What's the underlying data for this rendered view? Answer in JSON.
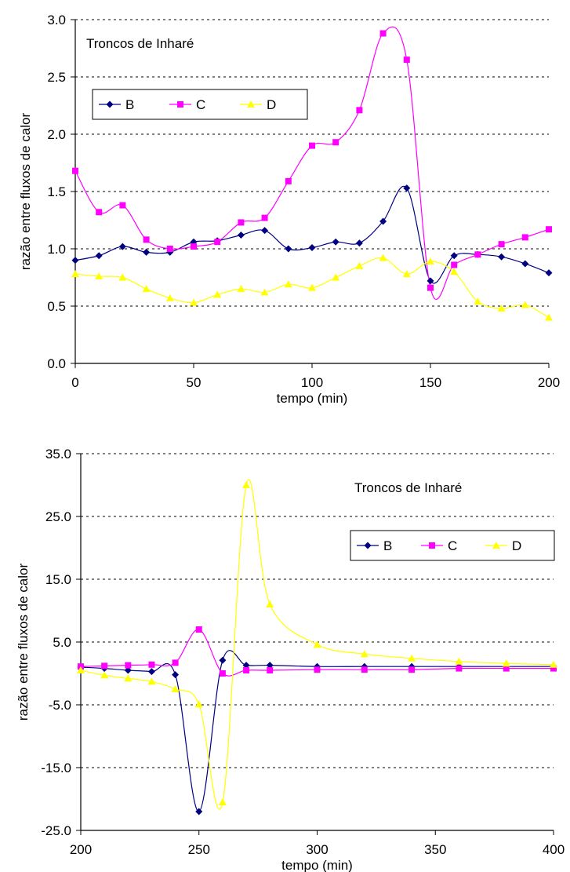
{
  "chart_data": [
    {
      "type": "line",
      "title": "",
      "annotation": "Troncos de Inharé",
      "xlabel": "tempo (min)",
      "ylabel": "razão entre fluxos de calor",
      "xlim": [
        0,
        200
      ],
      "ylim": [
        0,
        3
      ],
      "x_ticks": [
        "0",
        "50",
        "100",
        "150",
        "200"
      ],
      "y_ticks": [
        "0.0",
        "0.5",
        "1.0",
        "1.5",
        "2.0",
        "2.5",
        "3.0"
      ],
      "grid": "horizontal dashed",
      "legend_position": "top-left",
      "series": [
        {
          "name": "B",
          "color": "#000080",
          "marker": "diamond",
          "x": [
            0,
            10,
            20,
            30,
            40,
            50,
            60,
            70,
            80,
            90,
            100,
            110,
            120,
            130,
            140,
            150,
            160,
            170,
            180,
            190,
            200
          ],
          "y": [
            0.9,
            0.94,
            1.02,
            0.97,
            0.97,
            1.06,
            1.07,
            1.12,
            1.16,
            1.0,
            1.01,
            1.06,
            1.05,
            1.24,
            1.53,
            0.72,
            0.94,
            0.95,
            0.93,
            0.87,
            0.79
          ]
        },
        {
          "name": "C",
          "color": "#FF00FF",
          "marker": "square",
          "x": [
            0,
            10,
            20,
            30,
            40,
            50,
            60,
            70,
            80,
            90,
            100,
            110,
            120,
            130,
            140,
            150,
            160,
            170,
            180,
            190,
            200
          ],
          "y": [
            1.68,
            1.32,
            1.38,
            1.08,
            1.0,
            1.02,
            1.06,
            1.23,
            1.27,
            1.59,
            1.9,
            1.93,
            2.21,
            2.88,
            2.65,
            0.66,
            0.86,
            0.95,
            1.04,
            1.1,
            1.17
          ]
        },
        {
          "name": "D",
          "color": "#FFFF00",
          "marker": "triangle",
          "x": [
            0,
            10,
            20,
            30,
            40,
            50,
            60,
            70,
            80,
            90,
            100,
            110,
            120,
            130,
            140,
            150,
            160,
            170,
            180,
            190,
            200
          ],
          "y": [
            0.78,
            0.76,
            0.75,
            0.65,
            0.57,
            0.53,
            0.6,
            0.65,
            0.62,
            0.69,
            0.66,
            0.75,
            0.85,
            0.92,
            0.78,
            0.89,
            0.8,
            0.54,
            0.48,
            0.51,
            0.4
          ]
        }
      ]
    },
    {
      "type": "line",
      "title": "",
      "annotation": "Troncos de Inharé",
      "xlabel": "tempo (min)",
      "ylabel": "razão entre fluxos de calor",
      "xlim": [
        200,
        400
      ],
      "ylim": [
        -25,
        35
      ],
      "x_ticks": [
        "200",
        "250",
        "300",
        "350",
        "400"
      ],
      "y_ticks": [
        "-25.0",
        "-15.0",
        "-5.0",
        "5.0",
        "15.0",
        "25.0",
        "35.0"
      ],
      "grid": "horizontal dashed",
      "legend_position": "top-right",
      "series": [
        {
          "name": "B",
          "color": "#000080",
          "marker": "diamond",
          "x": [
            200,
            210,
            220,
            230,
            240,
            250,
            260,
            270,
            280,
            300,
            320,
            340,
            360,
            380,
            400
          ],
          "y": [
            1.0,
            0.8,
            0.5,
            0.3,
            -0.2,
            -22.0,
            2.1,
            1.3,
            1.3,
            1.1,
            1.1,
            1.1,
            1.1,
            1.1,
            1.1
          ]
        },
        {
          "name": "C",
          "color": "#FF00FF",
          "marker": "square",
          "x": [
            200,
            210,
            220,
            230,
            240,
            250,
            260,
            270,
            280,
            300,
            320,
            340,
            360,
            380,
            400
          ],
          "y": [
            1.1,
            1.2,
            1.3,
            1.4,
            1.7,
            7.0,
            0.0,
            0.5,
            0.5,
            0.6,
            0.6,
            0.6,
            0.8,
            0.8,
            0.8
          ]
        },
        {
          "name": "D",
          "color": "#FFFF00",
          "marker": "triangle",
          "x": [
            200,
            210,
            220,
            230,
            240,
            250,
            260,
            270,
            280,
            300,
            320,
            340,
            360,
            380,
            400
          ],
          "y": [
            0.5,
            -0.3,
            -0.8,
            -1.3,
            -2.5,
            -4.9,
            -20.5,
            30.0,
            11.0,
            4.6,
            3.1,
            2.4,
            1.9,
            1.6,
            1.4
          ]
        }
      ]
    }
  ]
}
